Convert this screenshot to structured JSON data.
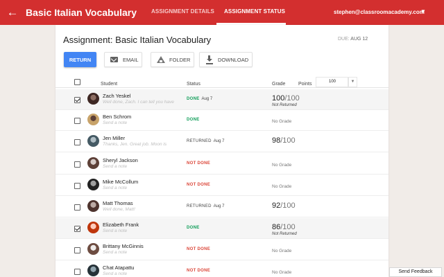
{
  "header": {
    "title": "Basic Italian Vocabulary",
    "tabs": [
      "ASSIGNMENT DETAILS",
      "ASSIGNMENT STATUS"
    ],
    "account": "stephen@classroomacademy.com",
    "colors": {
      "bar": "#d32f2f"
    }
  },
  "assignment": {
    "title": "Assignment: Basic Italian Vocabulary",
    "due_label": "DUE:",
    "due_date": "AUG 12"
  },
  "toolbar": {
    "return_label": "RETURN",
    "email_label": "EMAIL",
    "folder_label": "FOLDER",
    "download_label": "DOWNLOAD"
  },
  "table": {
    "col_student": "Student",
    "col_status": "Status",
    "col_grade": "Grade",
    "col_points": "Points",
    "points_value": "100",
    "rows": [
      {
        "name": "Zach Yeskel",
        "note": "Well done, Zach. I can tell you have",
        "status": "DONE",
        "status_date": "Aug 7",
        "grade": "100",
        "grade_den": "/100",
        "grade_sub": "Not Returned",
        "checked": true
      },
      {
        "name": "Ben Schrom",
        "note": "Send a note",
        "status": "DONE",
        "status_date": "",
        "grade_text": "No Grade",
        "checked": false
      },
      {
        "name": "Jen Miller",
        "note": "Thanks, Jen. Great job. Moon is",
        "status": "RETURNED",
        "status_date": "Aug 7",
        "grade": "98",
        "grade_den": "/100",
        "checked": false
      },
      {
        "name": "Sheryl Jackson",
        "note": "Send a note",
        "status": "NOT DONE",
        "status_date": "",
        "grade_text": "No Grade",
        "checked": false
      },
      {
        "name": "Mike McCollum",
        "note": "Send a note",
        "status": "NOT DONE",
        "status_date": "",
        "grade_text": "No Grade",
        "checked": false
      },
      {
        "name": "Matt Thomas",
        "note": "Well done, Matt!",
        "status": "RETURNED",
        "status_date": "Aug 7",
        "grade": "92",
        "grade_den": "/100",
        "checked": false
      },
      {
        "name": "Elizabeth Frank",
        "note": "Send a note",
        "status": "DONE",
        "status_date": "",
        "grade": "86",
        "grade_den": "/100",
        "grade_sub": "Not Returned",
        "checked": true
      },
      {
        "name": "Brittany McGinnis",
        "note": "Send a note",
        "status": "NOT DONE",
        "status_date": "",
        "grade_text": "No Grade",
        "checked": false
      },
      {
        "name": "Chat Atapattu",
        "note": "Send a note",
        "status": "NOT DONE",
        "status_date": "",
        "grade_text": "No Grade",
        "checked": false
      }
    ]
  },
  "feedback_label": "Send Feedback"
}
